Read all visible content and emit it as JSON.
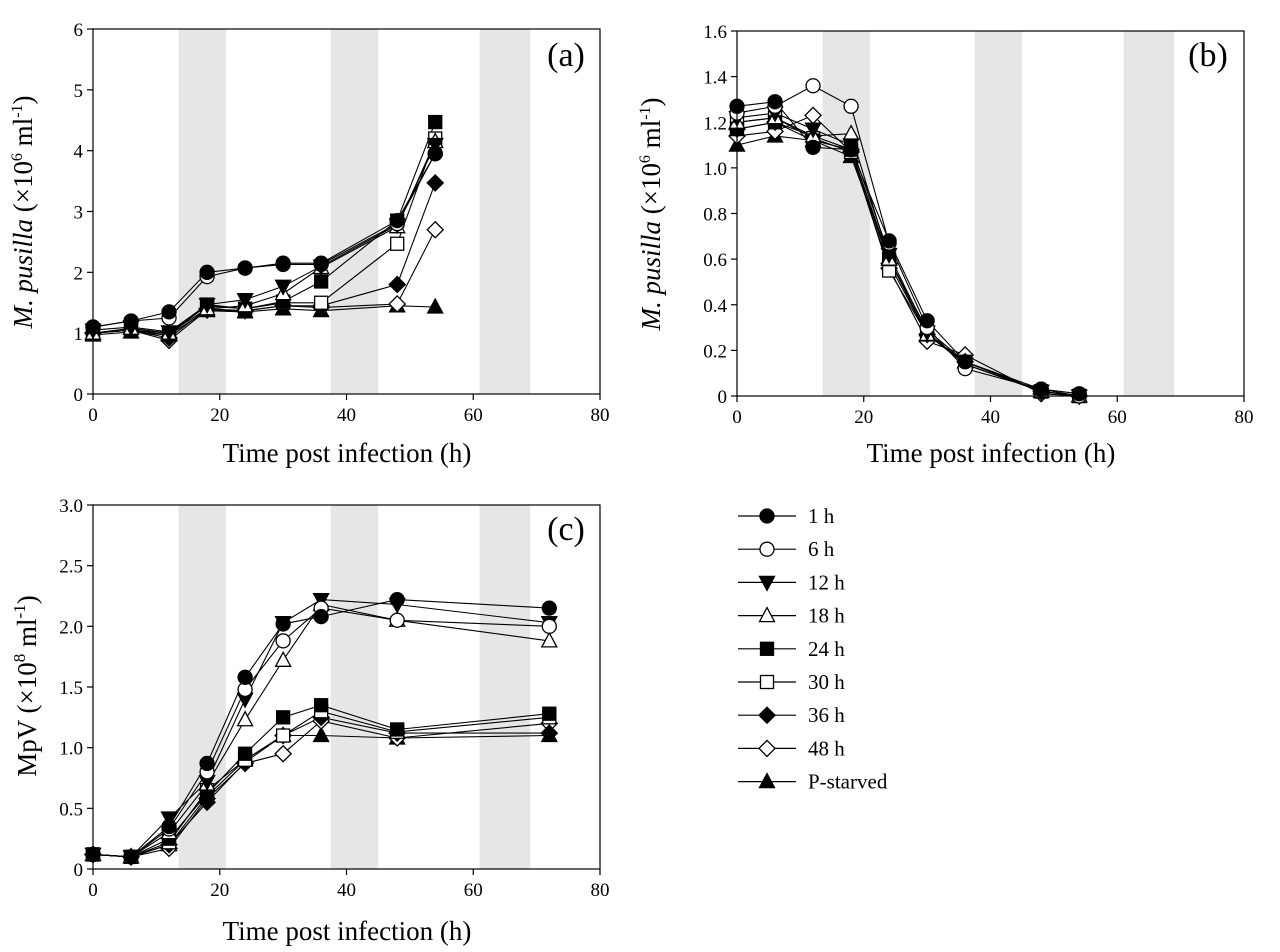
{
  "series_names": [
    "1 h",
    "6 h",
    "12 h",
    "18 h",
    "24 h",
    "30 h",
    "36 h",
    "48 h",
    "P-starved"
  ],
  "series_markers": [
    "circle-filled",
    "circle-open",
    "triangle-down-filled",
    "triangle-up-open",
    "square-filled",
    "square-open",
    "diamond-filled",
    "diamond-open",
    "triangle-up-filled"
  ],
  "chart_data": [
    {
      "type": "line",
      "panel_label": "(a)",
      "xlabel": "Time post infection (h)",
      "ylabel_italic": "M. pusilla",
      "ylabel_units": "(×10",
      "ylabel_exp": "6",
      "ylabel_tail": " ml",
      "ylabel_tail_exp": "-1",
      "ylabel_close": ")",
      "xlim": [
        0,
        80
      ],
      "ylim": [
        0,
        6
      ],
      "xticks": [
        "0",
        "20",
        "40",
        "60",
        "80"
      ],
      "yticks": [
        "0",
        "1",
        "2",
        "3",
        "4",
        "5",
        "6"
      ],
      "dark_periods": [
        [
          13.5,
          21
        ],
        [
          37.5,
          45
        ],
        [
          61,
          69
        ]
      ],
      "x": [
        0,
        6,
        12,
        18,
        24,
        30,
        36,
        48,
        54
      ],
      "series": [
        {
          "name": "1 h",
          "values": [
            1.1,
            1.2,
            1.35,
            2.0,
            2.07,
            2.15,
            2.15,
            2.85,
            3.95
          ]
        },
        {
          "name": "6 h",
          "values": [
            1.1,
            1.2,
            1.25,
            1.93,
            2.07,
            2.13,
            2.13,
            2.8,
            3.95
          ]
        },
        {
          "name": "12 h",
          "values": [
            1.05,
            1.1,
            1.02,
            1.47,
            1.55,
            1.77,
            2.1,
            2.78,
            4.1
          ]
        },
        {
          "name": "18 h",
          "values": [
            1.0,
            1.08,
            1.0,
            1.4,
            1.45,
            1.65,
            2.08,
            2.75,
            4.15
          ]
        },
        {
          "name": "24 h",
          "values": [
            1.0,
            1.05,
            0.97,
            1.47,
            1.4,
            1.52,
            1.85,
            2.85,
            4.47
          ]
        },
        {
          "name": "30 h",
          "values": [
            1.0,
            1.05,
            1.0,
            1.45,
            1.4,
            1.5,
            1.5,
            2.47,
            4.2
          ]
        },
        {
          "name": "36 h",
          "values": [
            1.0,
            1.05,
            0.92,
            1.4,
            1.37,
            1.45,
            1.45,
            1.8,
            3.47
          ]
        },
        {
          "name": "48 h",
          "values": [
            1.0,
            1.05,
            0.88,
            1.38,
            1.37,
            1.45,
            1.42,
            1.48,
            2.7
          ]
        },
        {
          "name": "P-starved",
          "values": [
            0.97,
            1.02,
            0.97,
            1.37,
            1.35,
            1.4,
            1.37,
            1.45,
            1.43
          ]
        }
      ]
    },
    {
      "type": "line",
      "panel_label": "(b)",
      "xlabel": "Time post infection (h)",
      "ylabel_italic": "M. pusilla",
      "ylabel_units": "(×10",
      "ylabel_exp": "6",
      "ylabel_tail": " ml",
      "ylabel_tail_exp": "-1",
      "ylabel_close": ")",
      "xlim": [
        0,
        80
      ],
      "ylim": [
        0,
        1.6
      ],
      "xticks": [
        "0",
        "20",
        "40",
        "60",
        "80"
      ],
      "yticks": [
        "0",
        "0.2",
        "0.4",
        "0.6",
        "0.8",
        "1.0",
        "1.2",
        "1.4",
        "1.6"
      ],
      "dark_periods": [
        [
          13.5,
          21
        ],
        [
          37.5,
          45
        ],
        [
          61,
          69
        ]
      ],
      "x": [
        0,
        6,
        12,
        18,
        24,
        30,
        36,
        48,
        54
      ],
      "series": [
        {
          "name": "1 h",
          "values": [
            1.27,
            1.29,
            1.09,
            1.08,
            0.68,
            0.33,
            0.15,
            0.03,
            0.01
          ]
        },
        {
          "name": "6 h",
          "values": [
            1.24,
            1.27,
            1.36,
            1.27,
            0.67,
            0.3,
            0.12,
            0.03,
            0.0
          ]
        },
        {
          "name": "12 h",
          "values": [
            1.22,
            1.24,
            1.17,
            1.1,
            0.62,
            0.28,
            0.14,
            0.02,
            0.0
          ]
        },
        {
          "name": "18 h",
          "values": [
            1.2,
            1.22,
            1.14,
            1.15,
            0.6,
            0.27,
            0.15,
            0.02,
            0.0
          ]
        },
        {
          "name": "24 h",
          "values": [
            1.17,
            1.2,
            1.12,
            1.08,
            0.6,
            0.27,
            0.15,
            0.02,
            0.0
          ]
        },
        {
          "name": "30 h",
          "values": [
            1.2,
            1.22,
            1.13,
            1.07,
            0.55,
            0.27,
            0.14,
            0.02,
            0.0
          ]
        },
        {
          "name": "36 h",
          "values": [
            1.17,
            1.2,
            1.14,
            1.08,
            0.58,
            0.27,
            0.15,
            0.02,
            0.0
          ]
        },
        {
          "name": "48 h",
          "values": [
            1.14,
            1.16,
            1.23,
            1.07,
            0.56,
            0.24,
            0.18,
            0.01,
            0.0
          ]
        },
        {
          "name": "P-starved",
          "values": [
            1.1,
            1.14,
            1.12,
            1.05,
            0.6,
            0.29,
            0.15,
            0.02,
            0.0
          ]
        }
      ]
    },
    {
      "type": "line",
      "panel_label": "(c)",
      "xlabel": "Time post infection (h)",
      "ylabel_italic": "",
      "ylabel_units": "MpV (×10",
      "ylabel_exp": "8",
      "ylabel_tail": " ml",
      "ylabel_tail_exp": "-1",
      "ylabel_close": ")",
      "xlim": [
        0,
        80
      ],
      "ylim": [
        0,
        3.0
      ],
      "xticks": [
        "0",
        "20",
        "40",
        "60",
        "80"
      ],
      "yticks": [
        "0",
        "0.5",
        "1.0",
        "1.5",
        "2.0",
        "2.5",
        "3.0"
      ],
      "dark_periods": [
        [
          13.5,
          21
        ],
        [
          37.5,
          45
        ],
        [
          61,
          69
        ]
      ],
      "x": [
        0,
        6,
        12,
        18,
        24,
        30,
        36,
        48,
        72
      ],
      "series": [
        {
          "name": "1 h",
          "values": [
            0.12,
            0.1,
            0.35,
            0.87,
            1.58,
            2.02,
            2.08,
            2.22,
            2.15
          ]
        },
        {
          "name": "6 h",
          "values": [
            0.12,
            0.1,
            0.33,
            0.8,
            1.48,
            1.88,
            2.15,
            2.05,
            2.0
          ]
        },
        {
          "name": "12 h",
          "values": [
            0.12,
            0.1,
            0.42,
            0.72,
            1.4,
            2.03,
            2.22,
            2.18,
            2.03
          ]
        },
        {
          "name": "18 h",
          "values": [
            0.12,
            0.1,
            0.3,
            0.7,
            1.23,
            1.72,
            2.18,
            2.05,
            1.88
          ]
        },
        {
          "name": "24 h",
          "values": [
            0.12,
            0.1,
            0.25,
            0.62,
            0.95,
            1.25,
            1.35,
            1.15,
            1.28
          ]
        },
        {
          "name": "30 h",
          "values": [
            0.12,
            0.1,
            0.22,
            0.65,
            0.9,
            1.1,
            1.3,
            1.13,
            1.25
          ]
        },
        {
          "name": "36 h",
          "values": [
            0.12,
            0.1,
            0.2,
            0.55,
            0.88,
            1.1,
            1.25,
            1.12,
            1.12
          ]
        },
        {
          "name": "48 h",
          "values": [
            0.12,
            0.1,
            0.17,
            0.58,
            0.87,
            0.95,
            1.22,
            1.08,
            1.2
          ]
        },
        {
          "name": "P-starved",
          "values": [
            0.12,
            0.1,
            0.2,
            0.6,
            0.9,
            1.1,
            1.1,
            1.08,
            1.1
          ]
        }
      ]
    }
  ]
}
